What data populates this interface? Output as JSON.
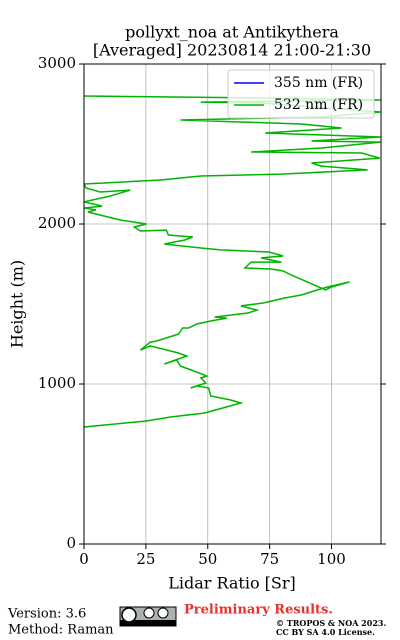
{
  "chart_data": {
    "type": "line",
    "title": "pollyxt_noa at Antikythera",
    "subtitle": "[Averaged] 20230814 21:00-21:30",
    "xlabel": "Lidar Ratio [Sr]",
    "ylabel": "Height (m)",
    "xlim": [
      0,
      120
    ],
    "xticks": [
      0,
      25,
      50,
      75,
      100
    ],
    "ylim": [
      0,
      3000
    ],
    "yticks": [
      0,
      1000,
      2000,
      3000
    ],
    "grid": true,
    "legend": "upper right",
    "height": [
      731,
      769,
      794,
      819,
      838,
      881,
      900,
      925,
      975,
      988,
      975,
      1006,
      1038,
      1050,
      1075,
      1112,
      1150,
      1125,
      1175,
      1194,
      1238,
      1212,
      1262,
      1269,
      1312,
      1350,
      1350,
      1375,
      1394,
      1412,
      1419,
      1444,
      1462,
      1488,
      1506,
      1538,
      1556,
      1588,
      1606,
      1638,
      1606,
      1588,
      1681,
      1706,
      1719,
      1725,
      1762,
      1762,
      1788,
      1800,
      1825,
      1838,
      1850,
      1875,
      1900,
      1919,
      1931,
      1962,
      1956,
      1981,
      2000,
      2025,
      2050,
      2075,
      2088,
      2100,
      2112,
      2138,
      2175,
      2212,
      2200,
      2225,
      2250,
      2275,
      2300,
      2312,
      2338,
      2362,
      2381,
      2412,
      2444,
      2450,
      2475,
      2512,
      2519,
      2544,
      2569,
      2600,
      2625,
      2650,
      2669,
      2700,
      2756,
      2762,
      2775,
      2788,
      2800
    ],
    "series": [
      {
        "name": "355 nm (FR)",
        "color": "#0000ff",
        "values": [
          null,
          null,
          null,
          null,
          null,
          null,
          null,
          null,
          null,
          null,
          null,
          null,
          null,
          null,
          null,
          null,
          null,
          null,
          null,
          null,
          null,
          null,
          null,
          null,
          null,
          null,
          null,
          null,
          null,
          null,
          null,
          null,
          null,
          null,
          null,
          null,
          null,
          null,
          null,
          null,
          null,
          null,
          null,
          null,
          null,
          null,
          null,
          null,
          null,
          null,
          null,
          null,
          null,
          null,
          null,
          null,
          null,
          null,
          null,
          null,
          null,
          null,
          null,
          null,
          null,
          null,
          null,
          null,
          null,
          null,
          null,
          null,
          null,
          null,
          null,
          null,
          null,
          null,
          null,
          null,
          null,
          null,
          null,
          null,
          null,
          null,
          null,
          null,
          null,
          null,
          null,
          null,
          null,
          null,
          null,
          null,
          null
        ]
      },
      {
        "name": "532 nm (FR)",
        "color": "#00b400",
        "values": [
          0,
          25.2,
          35,
          48.8,
          53.3,
          63.4,
          59.3,
          51.2,
          50.4,
          45.5,
          43.1,
          49.2,
          47.2,
          49.6,
          45.5,
          39,
          37.4,
          32.5,
          41.5,
          38.2,
          26.8,
          22.8,
          26.8,
          29.3,
          38.2,
          39.8,
          42.3,
          45.5,
          51.2,
          57.7,
          52.8,
          66.3,
          69.9,
          63.4,
          72.4,
          81.3,
          87.8,
          94.3,
          98.4,
          107.3,
          100,
          97.6,
          83.7,
          80.5,
          75.6,
          65,
          67.5,
          79.7,
          71.5,
          80.5,
          74.8,
          55.3,
          47.2,
          32.5,
          40.7,
          43.9,
          34.1,
          33.3,
          22.8,
          20.3,
          25.2,
          14.6,
          8.1,
          1.6,
          4.9,
          0,
          7.3,
          0,
          10.6,
          18.7,
          6.5,
          0.8,
          0,
          30.9,
          47.2,
          79.7,
          114.6,
          95.9,
          91.9,
          119.5,
          112.2,
          67.5,
          95.9,
          119.8,
          91.9,
          119.8,
          73.2,
          104.1,
          87.8,
          39,
          95.9,
          119.8,
          71.5,
          47.2,
          119.8,
          71.5,
          0
        ]
      }
    ]
  },
  "footer": {
    "version": "Version: 3.6",
    "method": "Method: Raman",
    "notice": "Preliminary Results.",
    "copyright": "© TROPOS & NOA 2023.",
    "license": "CC BY SA 4.0 License."
  }
}
